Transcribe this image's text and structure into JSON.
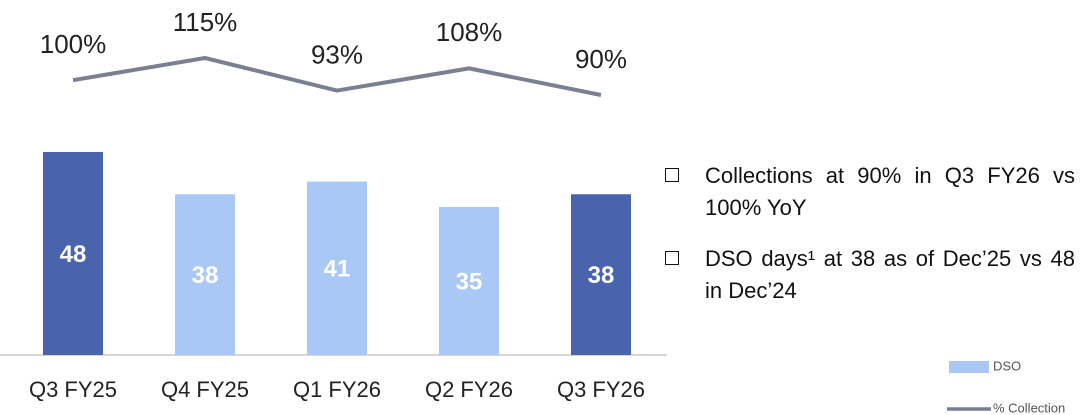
{
  "chart_data": {
    "type": "bar",
    "categories": [
      "Q3 FY25",
      "Q4 FY25",
      "Q1 FY26",
      "Q2 FY26",
      "Q3 FY26"
    ],
    "series": [
      {
        "name": "DSO",
        "type": "bar",
        "color": "#a9c8f5",
        "colors": [
          "#4a63ad",
          "#a9c8f5",
          "#a9c8f5",
          "#a9c8f5",
          "#4a63ad"
        ],
        "values": [
          48,
          38,
          41,
          35,
          38
        ]
      },
      {
        "name": "% Collection",
        "type": "line",
        "axis": "y2",
        "color": "#7b7f92",
        "values": [
          100,
          115,
          93,
          108,
          90
        ],
        "value_labels": [
          "100%",
          "115%",
          "93%",
          "108%",
          "90%"
        ]
      }
    ],
    "ylim": [
      0,
      50
    ],
    "y2lim": [
      60,
      120
    ],
    "legend": "lower right"
  },
  "bullets": [
    "Collections at 90% in Q3 FY26 vs 100% YoY",
    "DSO days¹ at 38 as of Dec’25 vs 48 in Dec’24"
  ]
}
